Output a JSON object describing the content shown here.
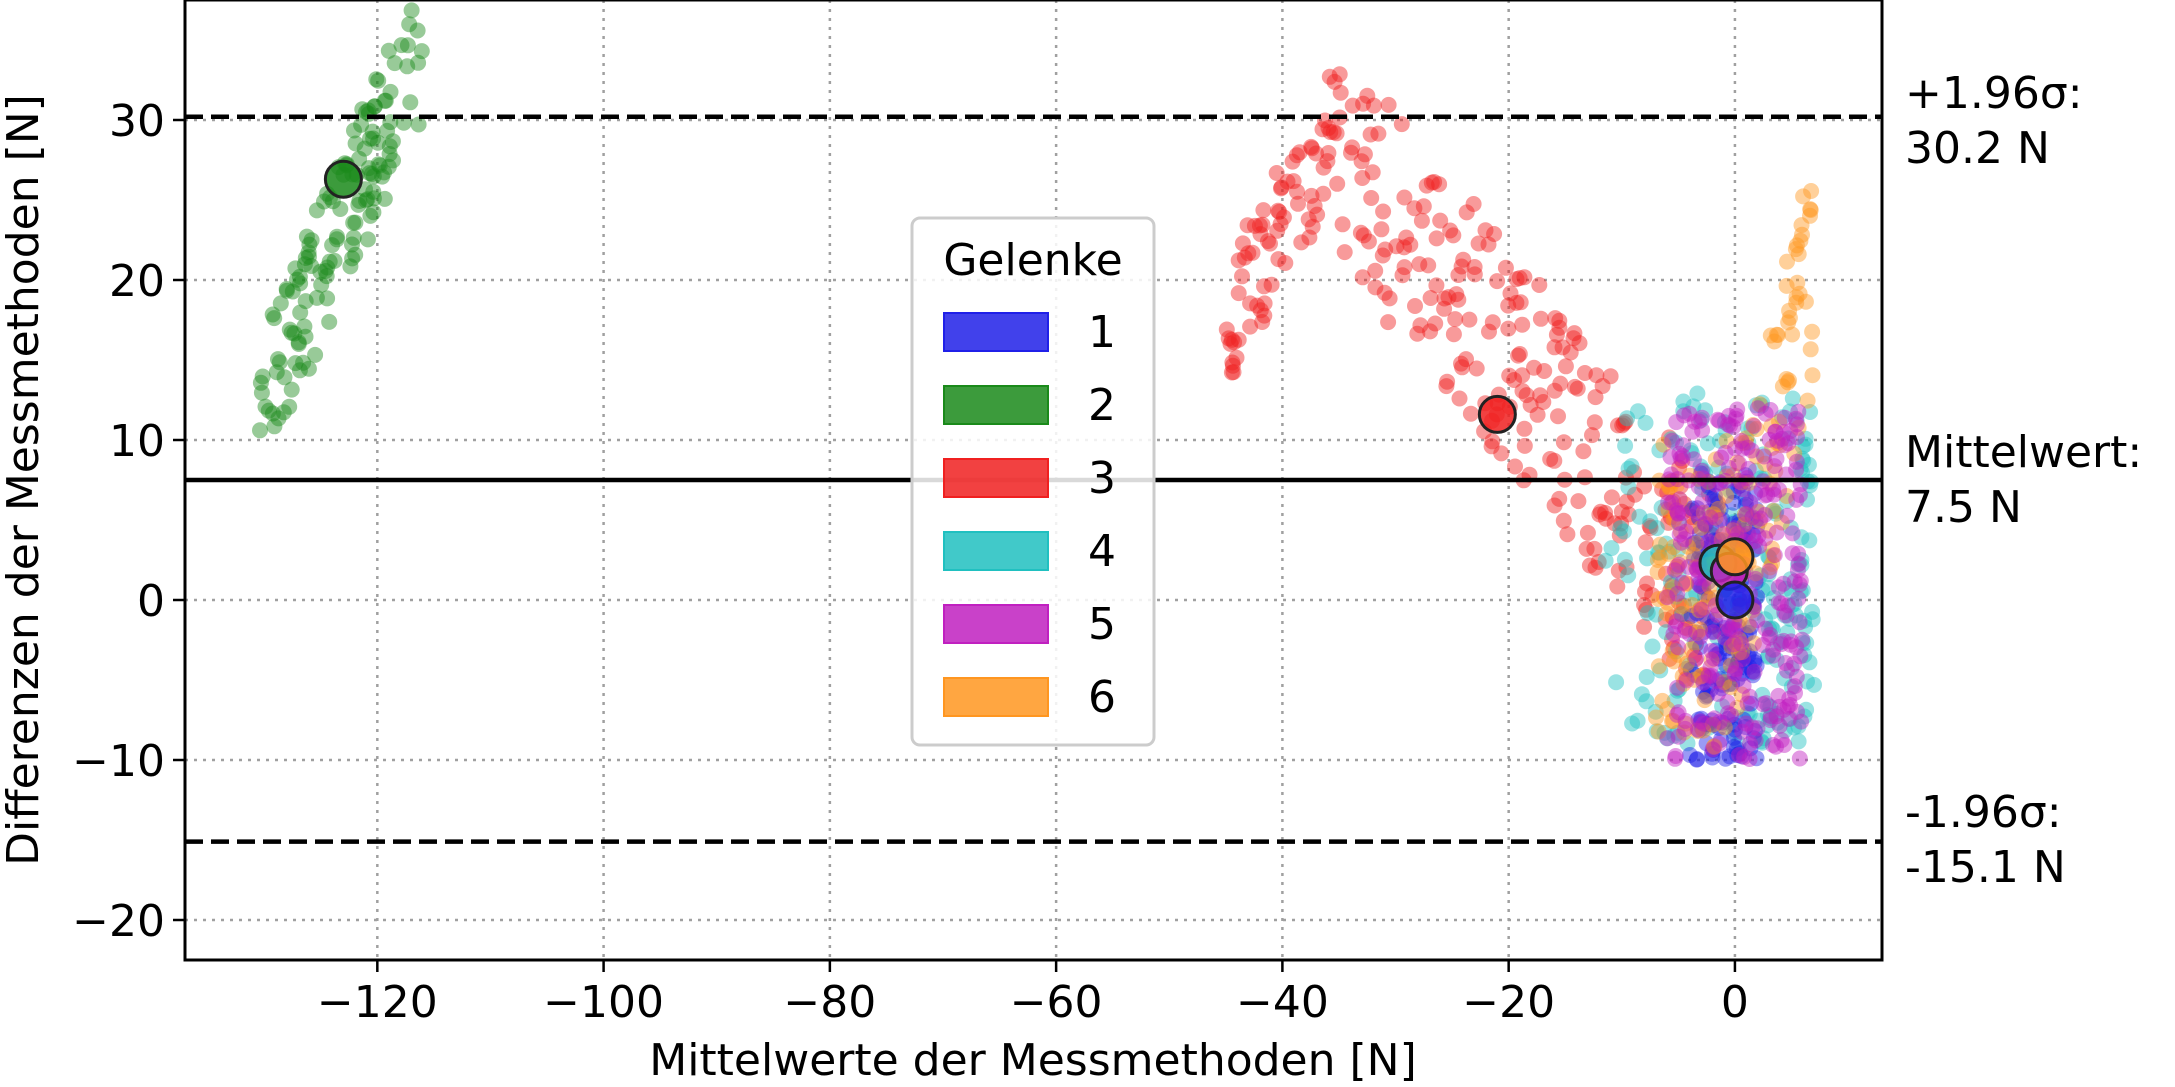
{
  "chart_data": {
    "type": "scatter",
    "xlabel": "Mittelwerte der Messmethoden [N]",
    "ylabel": "Differenzen der Messmethoden [N]",
    "xlim": [
      -137,
      13
    ],
    "ylim": [
      -22.5,
      37.5
    ],
    "xticks": [
      -120,
      -100,
      -80,
      -60,
      -40,
      -20,
      0
    ],
    "yticks": [
      -20,
      -10,
      0,
      10,
      20,
      30
    ],
    "grid": true,
    "grid_style": "dotted",
    "reference_lines": {
      "mean": {
        "value": 7.5,
        "label_line1": "Mittelwert:",
        "label_line2": "7.5 N"
      },
      "upper": {
        "value": 30.2,
        "label_line1": "+1.96σ:",
        "label_line2": "30.2 N"
      },
      "lower": {
        "value": -15.1,
        "label_line1": "-1.96σ:",
        "label_line2": "-15.1 N"
      }
    },
    "legend": {
      "title": "Gelenke",
      "placement": "center",
      "entries": [
        "1",
        "2",
        "3",
        "4",
        "5",
        "6"
      ]
    },
    "series": [
      {
        "name": "1",
        "color": "#2020e8",
        "mean_point": [
          0,
          0
        ],
        "cluster": {
          "x": [
            -4,
            2
          ],
          "y": [
            -10,
            8
          ]
        }
      },
      {
        "name": "2",
        "color": "#1a8a1a",
        "mean_point": [
          -123,
          26.3
        ],
        "cluster": {
          "x": [
            -130.5,
            -116
          ],
          "y": [
            12,
            37
          ]
        }
      },
      {
        "name": "3",
        "color": "#f02020",
        "mean_point": [
          -21,
          11.6
        ],
        "cluster": {
          "x": [
            -45,
            -1
          ],
          "y": [
            -18,
            31
          ]
        }
      },
      {
        "name": "4",
        "color": "#20c0c0",
        "mean_point": [
          -1.5,
          2.3
        ],
        "cluster": {
          "x": [
            -12,
            7
          ],
          "y": [
            -9,
            13
          ]
        }
      },
      {
        "name": "5",
        "color": "#c020c0",
        "mean_point": [
          -0.5,
          1.8
        ],
        "cluster": {
          "x": [
            -6,
            6
          ],
          "y": [
            -10,
            12
          ]
        }
      },
      {
        "name": "6",
        "color": "#ff9620",
        "mean_point": [
          0,
          2.7
        ],
        "cluster": {
          "x": [
            -7,
            7
          ],
          "y": [
            -12,
            25
          ]
        }
      }
    ]
  }
}
